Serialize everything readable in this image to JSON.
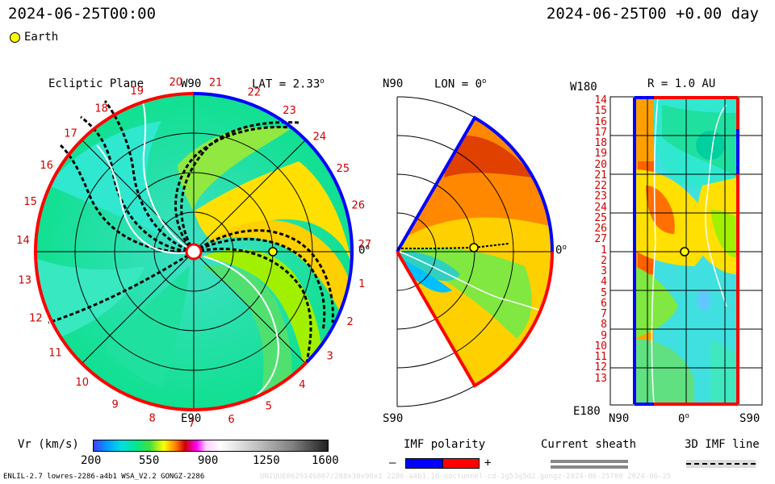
{
  "header": {
    "datetime_left": "2024-06-25T00:00",
    "datetime_right": "2024-06-25T00 +0.00 day",
    "legend_earth": "Earth"
  },
  "panels": {
    "ecliptic": {
      "title": "Ecliptic Plane",
      "top_label": "W90",
      "lat_label": "LAT = 2.33",
      "lat_unit": "o",
      "right_label": "0",
      "right_unit": "o",
      "bottom_label": "E90",
      "carrington_numbers": [
        "20",
        "21",
        "22",
        "23",
        "24",
        "25",
        "26",
        "27",
        "1",
        "2",
        "3",
        "4",
        "5",
        "6",
        "7",
        "8",
        "9",
        "10",
        "11",
        "12",
        "13",
        "14",
        "15",
        "16",
        "17",
        "18",
        "19"
      ]
    },
    "meridional": {
      "top_label": "N90",
      "lon_label": "LON = 0",
      "lon_unit": "o",
      "right_label": "0",
      "right_unit": "o",
      "bottom_label": "S90"
    },
    "radial": {
      "top_left_label": "W180",
      "r_label": "R = 1.0 AU",
      "bottom_left_label": "E180",
      "bottom_labels": [
        "N90",
        "0",
        "S90"
      ],
      "bottom_unit": "o",
      "rows": [
        "14",
        "15",
        "16",
        "17",
        "18",
        "19",
        "20",
        "21",
        "22",
        "23",
        "24",
        "25",
        "26",
        "27",
        "1",
        "2",
        "3",
        "4",
        "5",
        "6",
        "7",
        "8",
        "9",
        "10",
        "11",
        "12",
        "13"
      ]
    }
  },
  "colorbar": {
    "label": "Vr (km/s)",
    "ticks": [
      "200",
      "550",
      "900",
      "1250",
      "1600"
    ]
  },
  "legend": {
    "imf_polarity": "IMF polarity",
    "minus": "–",
    "plus": "+",
    "current_sheath": "Current sheath",
    "imf_line": "3D IMF line"
  },
  "footer": {
    "model_info": "ENLIL-2.7 lowres-2286-a4b1 WSA_V2.2 GONGZ-2286",
    "faint_info": "UNIQUE0629146807/288x30x90x1 2286-a4b1.16-noctunnel-cd-1g53q5d2.gongz-2024-06-25T00 2024-06-25"
  },
  "colors": {
    "positive_polarity": "#ff0000",
    "negative_polarity": "#0000ff",
    "earth": "#ffff00",
    "ambient": "#00e8a0",
    "fast": "#ffe800"
  }
}
